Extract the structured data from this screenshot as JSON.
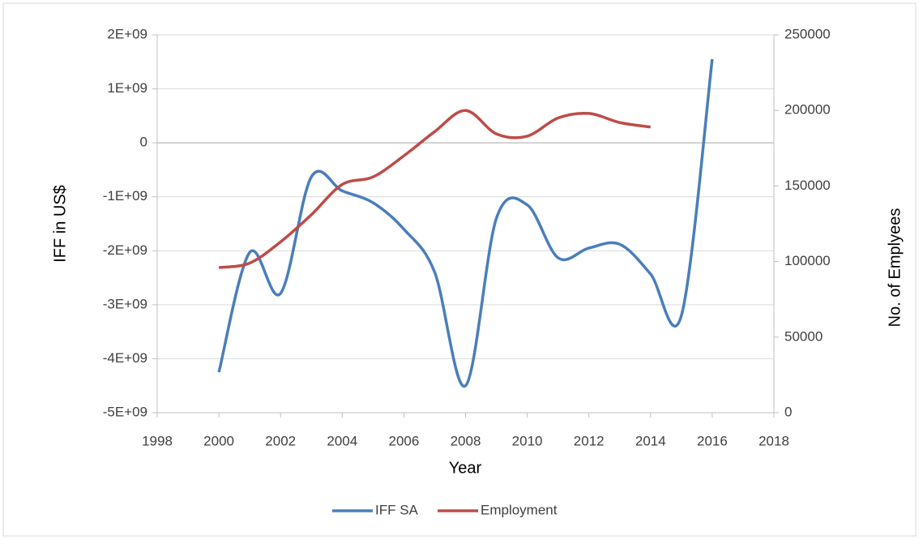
{
  "chart_data": {
    "type": "line",
    "x_label": "Year",
    "y_label": "IFF in US$",
    "y2_label": "No. of Emplyees",
    "xlim": [
      1998,
      2018
    ],
    "xticks": [
      1998,
      2000,
      2002,
      2004,
      2006,
      2008,
      2010,
      2012,
      2014,
      2016,
      2018
    ],
    "ylim": [
      -5000000000,
      2000000000
    ],
    "yticks": [
      {
        "value": -5000000000,
        "label": "-5E+09"
      },
      {
        "value": -4000000000,
        "label": "-4E+09"
      },
      {
        "value": -3000000000,
        "label": "-3E+09"
      },
      {
        "value": -2000000000,
        "label": "-2E+09"
      },
      {
        "value": -1000000000,
        "label": "-1E+09"
      },
      0,
      {
        "value": 1000000000,
        "label": "1E+09"
      },
      {
        "value": 2000000000,
        "label": "2E+09"
      }
    ],
    "y2lim": [
      0,
      250000
    ],
    "y2ticks": [
      0,
      50000,
      100000,
      150000,
      200000,
      250000
    ],
    "grid": true,
    "legend": "bottom",
    "series": [
      {
        "name": "IFF SA",
        "color": "#4a7ebb",
        "x": [
          2000,
          2001,
          2002,
          2003,
          2004,
          2005,
          2006,
          2007,
          2008,
          2009,
          2010,
          2011,
          2012,
          2013,
          2014,
          2015,
          2016
        ],
        "values": [
          -4250000000,
          -2030000000,
          -2790000000,
          -630000000,
          -890000000,
          -1110000000,
          -1600000000,
          -2400000000,
          -4500000000,
          -1400000000,
          -1150000000,
          -2130000000,
          -1950000000,
          -1880000000,
          -2430000000,
          -3200000000,
          1550000000
        ]
      },
      {
        "name": "Employment",
        "color": "#be4b48",
        "axis": "y2",
        "x": [
          2000,
          2001,
          2002,
          2003,
          2004,
          2005,
          2006,
          2007,
          2008,
          2009,
          2010,
          2011,
          2012,
          2013,
          2014
        ],
        "values": [
          96000,
          99000,
          113000,
          131000,
          151000,
          156000,
          170000,
          186000,
          200000,
          184500,
          183000,
          195000,
          198000,
          192000,
          189000
        ]
      }
    ]
  }
}
